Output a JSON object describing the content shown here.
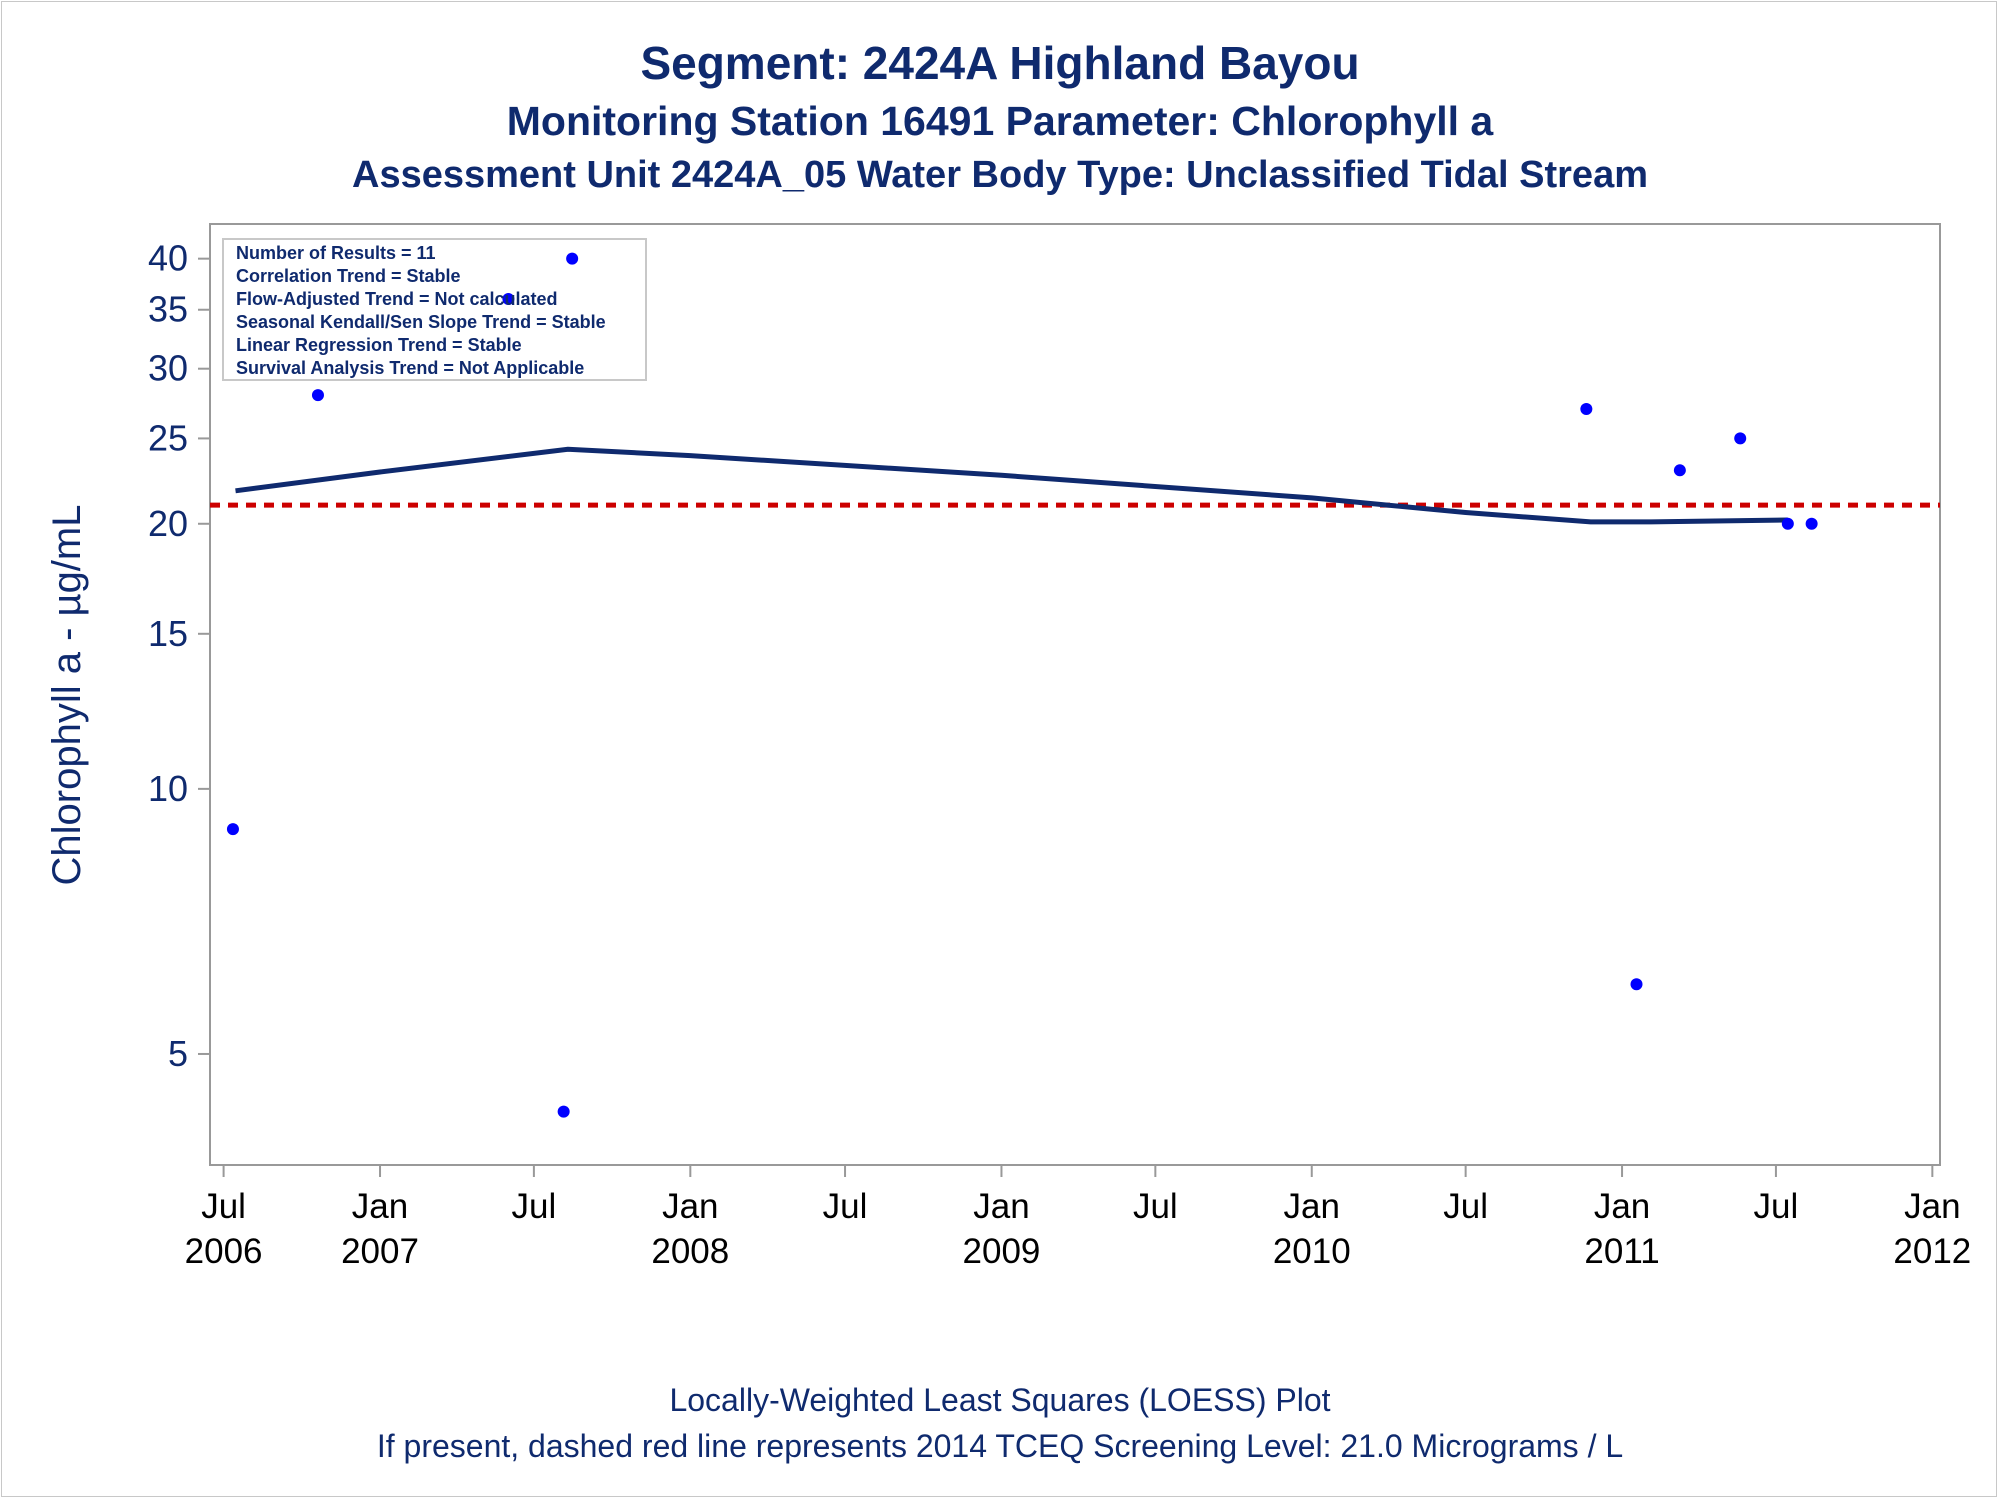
{
  "titles": {
    "line1": "Segment: 2424A  Highland Bayou",
    "line2": "Monitoring Station 16491 Parameter: Chlorophyll a",
    "line3": "Assessment Unit 2424A_05   Water Body Type: Unclassified Tidal Stream"
  },
  "footnotes": {
    "line1": "Locally-Weighted Least Squares (LOESS) Plot",
    "line2": "If present, dashed red line represents 2014 TCEQ Screening Level: 21.0 Micrograms / L"
  },
  "stats_box": [
    "Number of Results = 11",
    "Correlation Trend = Stable",
    "Flow-Adjusted Trend = Not calculated",
    "Seasonal Kendall/Sen Slope Trend = Stable",
    "Linear Regression Trend = Stable",
    "Survival Analysis Trend = Not Applicable"
  ],
  "colors": {
    "text": "#0f2a6e",
    "points": "#0000ff",
    "loess": "#0f2a6e",
    "screening": "#cc0000",
    "axis": "#999999"
  },
  "chart_data": {
    "type": "scatter",
    "ylabel": "Chlorophyll a -  µg/mL",
    "yscale": "log",
    "ylim": [
      3.9,
      42
    ],
    "yticks": [
      5,
      10,
      15,
      20,
      25,
      30,
      35,
      40
    ],
    "xlim": [
      "2006-06-15",
      "2012-01-10"
    ],
    "xticks": [
      {
        "date": "2006-07-01",
        "label": [
          "Jul",
          "2006"
        ]
      },
      {
        "date": "2007-01-01",
        "label": [
          "Jan",
          "2007"
        ]
      },
      {
        "date": "2007-07-01",
        "label": [
          "Jul",
          ""
        ]
      },
      {
        "date": "2008-01-01",
        "label": [
          "Jan",
          "2008"
        ]
      },
      {
        "date": "2008-07-01",
        "label": [
          "Jul",
          ""
        ]
      },
      {
        "date": "2009-01-01",
        "label": [
          "Jan",
          "2009"
        ]
      },
      {
        "date": "2009-07-01",
        "label": [
          "Jul",
          ""
        ]
      },
      {
        "date": "2010-01-01",
        "label": [
          "Jan",
          "2010"
        ]
      },
      {
        "date": "2010-07-01",
        "label": [
          "Jul",
          ""
        ]
      },
      {
        "date": "2011-01-01",
        "label": [
          "Jan",
          "2011"
        ]
      },
      {
        "date": "2011-07-01",
        "label": [
          "Jul",
          ""
        ]
      },
      {
        "date": "2012-01-01",
        "label": [
          "Jan",
          "2012"
        ]
      }
    ],
    "points": [
      {
        "date": "2006-07-12",
        "value": 9
      },
      {
        "date": "2006-10-20",
        "value": 28
      },
      {
        "date": "2007-06-01",
        "value": 36
      },
      {
        "date": "2007-08-15",
        "value": 40
      },
      {
        "date": "2007-08-05",
        "value": 4.3
      },
      {
        "date": "2010-11-20",
        "value": 27
      },
      {
        "date": "2011-01-18",
        "value": 6
      },
      {
        "date": "2011-03-10",
        "value": 23
      },
      {
        "date": "2011-05-20",
        "value": 25
      },
      {
        "date": "2011-08-12",
        "value": 20
      },
      {
        "date": "2011-07-15",
        "value": 20
      }
    ],
    "loess": [
      {
        "date": "2006-07-15",
        "value": 21.8
      },
      {
        "date": "2007-01-01",
        "value": 22.9
      },
      {
        "date": "2007-08-10",
        "value": 24.3
      },
      {
        "date": "2008-01-01",
        "value": 23.9
      },
      {
        "date": "2009-01-01",
        "value": 22.7
      },
      {
        "date": "2010-01-01",
        "value": 21.4
      },
      {
        "date": "2010-07-01",
        "value": 20.6
      },
      {
        "date": "2010-11-25",
        "value": 20.1
      },
      {
        "date": "2011-02-01",
        "value": 20.1
      },
      {
        "date": "2011-07-15",
        "value": 20.2
      }
    ],
    "screening_level": 21.0
  }
}
